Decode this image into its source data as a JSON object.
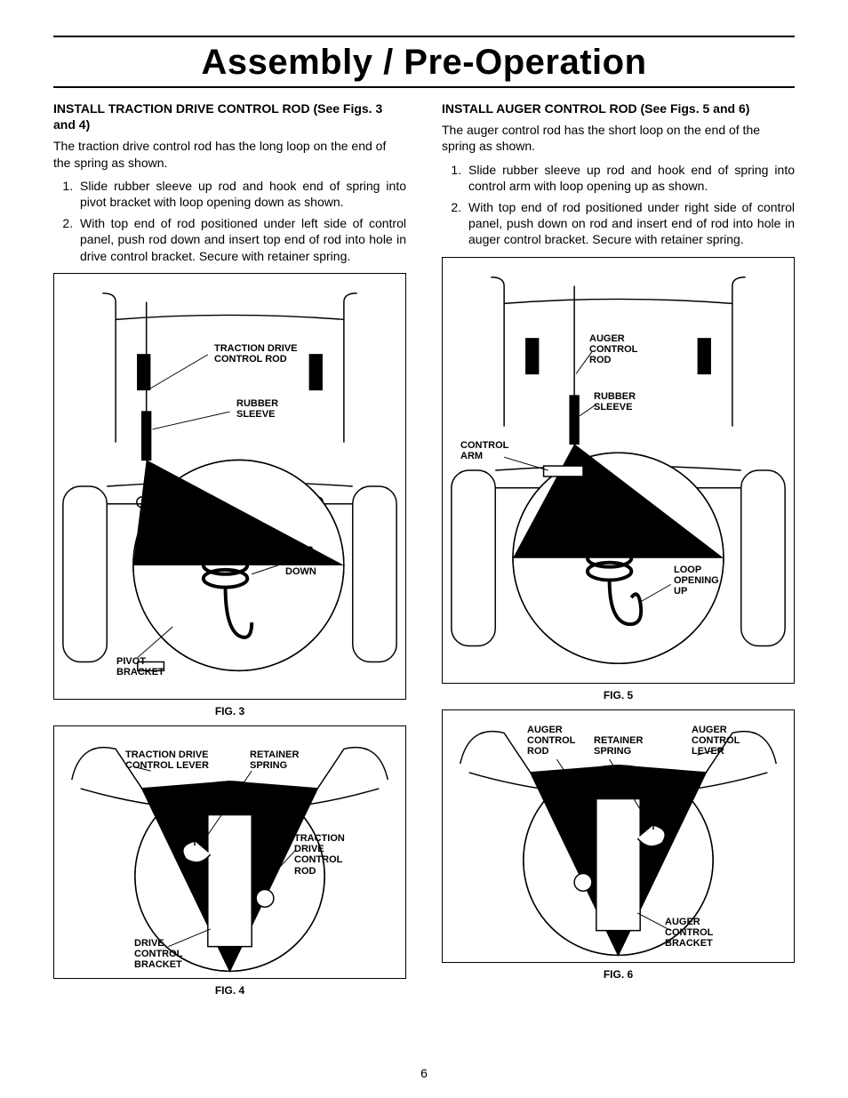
{
  "title": "Assembly / Pre-Operation",
  "page_number": "6",
  "left": {
    "heading": "INSTALL TRACTION DRIVE CONTROL ROD (See Figs. 3 and 4)",
    "intro": "The traction drive control rod has the long loop on the end of the spring as shown.",
    "steps": [
      "Slide rubber sleeve up rod and hook end of spring into pivot bracket with loop opening down as shown.",
      "With top end of rod positioned under left side of control panel, push rod down and insert top end of rod into hole in drive control bracket.  Secure with retainer spring."
    ],
    "fig3": {
      "caption": "FIG. 3",
      "labels": {
        "traction_rod": "TRACTION DRIVE\nCONTROL ROD",
        "rubber_sleeve": "RUBBER\nSLEEVE",
        "loop": "LOOP\nOPENING\nDOWN",
        "pivot": "PIVOT\nBRACKET"
      }
    },
    "fig4": {
      "caption": "FIG. 4",
      "labels": {
        "lever": "TRACTION DRIVE\nCONTROL LEVER",
        "retainer": "RETAINER\nSPRING",
        "rod": "TRACTION\nDRIVE\nCONTROL\nROD",
        "bracket": "DRIVE\nCONTROL\nBRACKET"
      }
    }
  },
  "right": {
    "heading": "INSTALL AUGER CONTROL ROD (See Figs. 5 and 6)",
    "intro": "The auger control rod has the short loop on the end of the spring as shown.",
    "steps": [
      "Slide rubber sleeve up rod and hook end of spring into control arm with loop opening up as shown.",
      "With top end of rod positioned under right side of control panel, push down on rod and insert end of rod into hole in auger control bracket.  Secure with retainer spring."
    ],
    "fig5": {
      "caption": "FIG. 5",
      "labels": {
        "auger_rod": "AUGER\nCONTROL\nROD",
        "rubber_sleeve": "RUBBER\nSLEEVE",
        "control_arm": "CONTROL\nARM",
        "loop": "LOOP\nOPENING\nUP"
      }
    },
    "fig6": {
      "caption": "FIG. 6",
      "labels": {
        "rod": "AUGER\nCONTROL\nROD",
        "retainer": "RETAINER\nSPRING",
        "lever": "AUGER\nCONTROL\nLEVER",
        "bracket": "AUGER\nCONTROL\nBRACKET"
      }
    }
  }
}
